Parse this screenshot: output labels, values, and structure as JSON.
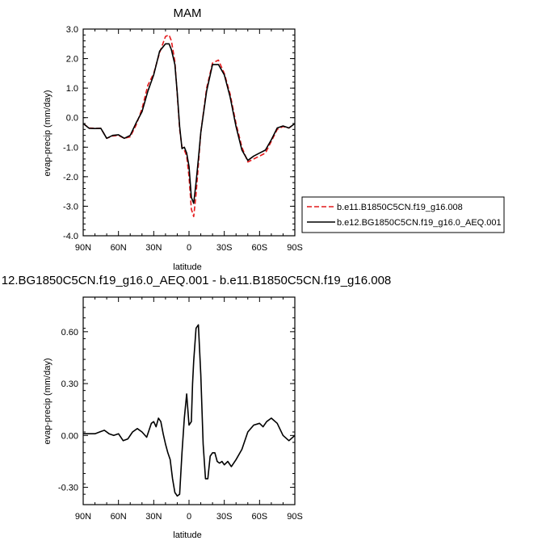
{
  "chart_data": [
    {
      "type": "line",
      "title": "MAM",
      "xlabel": "latitude",
      "ylabel": "evap-precip (mm/day)",
      "xlim": [
        90,
        -90
      ],
      "ylim": [
        -4.0,
        3.0
      ],
      "xticks": [
        90,
        60,
        30,
        0,
        -30,
        -60,
        -90
      ],
      "xtick_labels": [
        "90N",
        "60N",
        "30N",
        "0",
        "30S",
        "60S",
        "90S"
      ],
      "yticks": [
        -4.0,
        -3.0,
        -2.0,
        -1.0,
        0.0,
        1.0,
        2.0,
        3.0
      ],
      "ytick_labels": [
        "-4.0",
        "-3.0",
        "-2.0",
        "-1.0",
        "0.0",
        "1.0",
        "2.0",
        "3.0"
      ],
      "grid": false,
      "legend": "outside-right",
      "x": [
        90,
        85,
        80,
        75,
        70,
        65,
        60,
        55,
        50,
        45,
        40,
        35,
        30,
        25,
        20,
        17,
        15,
        12,
        10,
        8,
        6,
        4,
        2,
        0,
        -2,
        -4,
        -6,
        -8,
        -10,
        -15,
        -20,
        -25,
        -30,
        -35,
        -40,
        -45,
        -50,
        -55,
        -60,
        -65,
        -70,
        -75,
        -80,
        -85,
        -90
      ],
      "series": [
        {
          "name": "b.e11.B1850C5CN.f19_g16.008",
          "color": "#e41a1c",
          "dash": "6,3",
          "values": [
            -0.2,
            -0.35,
            -0.36,
            -0.36,
            -0.7,
            -0.62,
            -0.6,
            -0.7,
            -0.65,
            -0.25,
            0.3,
            1.1,
            1.5,
            2.2,
            2.75,
            2.8,
            2.6,
            1.9,
            0.8,
            -0.4,
            -1.0,
            -1.1,
            -1.3,
            -2.0,
            -3.1,
            -3.35,
            -2.6,
            -1.6,
            -0.5,
            1.0,
            1.85,
            1.95,
            1.5,
            0.8,
            -0.2,
            -1.0,
            -1.5,
            -1.4,
            -1.3,
            -1.2,
            -0.8,
            -0.4,
            -0.3,
            -0.35,
            -0.2
          ]
        },
        {
          "name": "b.e12.BG1850C5CN.f19_g16.0_AEQ.001",
          "color": "#000000",
          "dash": "",
          "values": [
            -0.2,
            -0.36,
            -0.37,
            -0.36,
            -0.7,
            -0.6,
            -0.58,
            -0.7,
            -0.6,
            -0.18,
            0.2,
            0.9,
            1.45,
            2.25,
            2.5,
            2.5,
            2.3,
            1.8,
            0.85,
            -0.3,
            -1.05,
            -1.0,
            -1.2,
            -1.65,
            -2.7,
            -2.9,
            -2.2,
            -1.4,
            -0.5,
            0.9,
            1.8,
            1.8,
            1.45,
            0.7,
            -0.3,
            -1.1,
            -1.45,
            -1.3,
            -1.2,
            -1.1,
            -0.75,
            -0.35,
            -0.28,
            -0.35,
            -0.2
          ]
        }
      ]
    },
    {
      "type": "line",
      "title": "12.BG1850C5CN.f19_g16.0_AEQ.001 - b.e11.B1850C5CN.f19_g16.008",
      "xlabel": "latitude",
      "ylabel": "evap-precip (mm/day)",
      "xlim": [
        90,
        -90
      ],
      "ylim": [
        -0.4,
        0.8
      ],
      "xticks": [
        90,
        60,
        30,
        0,
        -30,
        -60,
        -90
      ],
      "xtick_labels": [
        "90N",
        "60N",
        "30N",
        "0",
        "30S",
        "60S",
        "90S"
      ],
      "yticks": [
        -0.3,
        0.0,
        0.3,
        0.6
      ],
      "ytick_labels": [
        "-0.30",
        "0.00",
        "0.30",
        "0.60"
      ],
      "grid": false,
      "x": [
        90,
        85,
        80,
        76,
        72,
        68,
        64,
        60,
        56,
        52,
        48,
        44,
        40,
        36,
        34,
        32,
        30,
        28,
        26,
        24,
        22,
        20,
        18,
        16,
        14,
        12,
        11,
        10,
        8,
        6,
        4,
        2,
        0,
        -2,
        -3,
        -4,
        -6,
        -8,
        -10,
        -12,
        -14,
        -16,
        -18,
        -20,
        -22,
        -24,
        -26,
        -28,
        -30,
        -33,
        -36,
        -40,
        -45,
        -50,
        -55,
        -60,
        -63,
        -66,
        -70,
        -75,
        -80,
        -85,
        -90
      ],
      "series": [
        {
          "name": "",
          "color": "#000000",
          "dash": "",
          "values": [
            0.01,
            0.01,
            0.01,
            0.02,
            0.03,
            0.01,
            0.0,
            0.01,
            -0.03,
            -0.02,
            0.02,
            0.04,
            0.02,
            -0.01,
            0.03,
            0.07,
            0.08,
            0.05,
            0.1,
            0.08,
            0.01,
            -0.05,
            -0.1,
            -0.14,
            -0.25,
            -0.33,
            -0.34,
            -0.35,
            -0.34,
            -0.1,
            0.1,
            0.24,
            0.06,
            0.08,
            0.3,
            0.43,
            0.62,
            0.64,
            0.35,
            -0.05,
            -0.25,
            -0.25,
            -0.12,
            -0.1,
            -0.1,
            -0.15,
            -0.16,
            -0.15,
            -0.17,
            -0.15,
            -0.18,
            -0.14,
            -0.08,
            0.02,
            0.06,
            0.07,
            0.05,
            0.08,
            0.1,
            0.07,
            0.0,
            -0.03,
            0.0
          ]
        }
      ]
    }
  ]
}
